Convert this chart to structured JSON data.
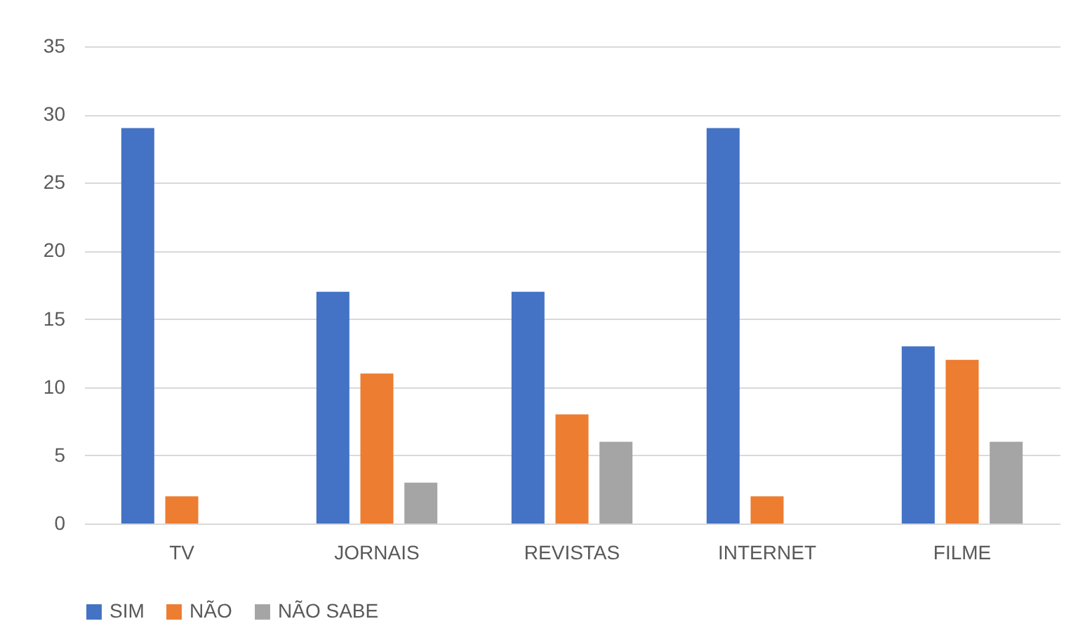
{
  "chart_data": {
    "type": "bar",
    "categories": [
      "TV",
      "JORNAIS",
      "REVISTAS",
      "INTERNET",
      "FILME"
    ],
    "series": [
      {
        "name": "SIM",
        "color": "#4472c4",
        "values": [
          29,
          17,
          17,
          29,
          13
        ]
      },
      {
        "name": "NÃO",
        "color": "#ed7d31",
        "values": [
          2,
          11,
          8,
          2,
          12
        ]
      },
      {
        "name": "NÃO SABE",
        "color": "#a5a5a5",
        "values": [
          0,
          3,
          6,
          0,
          6
        ]
      }
    ],
    "ylim": [
      0,
      35
    ],
    "yticks": [
      0,
      5,
      10,
      15,
      20,
      25,
      30,
      35
    ],
    "grid": "y",
    "legend": "bottom"
  }
}
